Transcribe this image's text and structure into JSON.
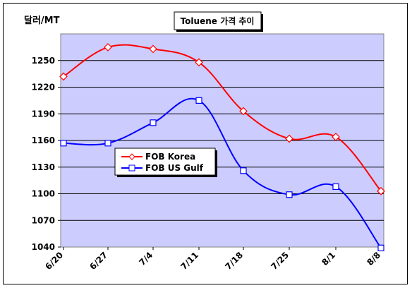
{
  "chart_data": {
    "type": "line",
    "title": "Toluene 가격 추이",
    "ylabel": "달러/MT",
    "xlabel": "",
    "categories": [
      "6/20",
      "6/27",
      "7/4",
      "7/11",
      "7/18",
      "7/25",
      "8/1",
      "8/8"
    ],
    "ylim": [
      1040,
      1280
    ],
    "yticks": [
      1040,
      1070,
      1100,
      1130,
      1160,
      1190,
      1220,
      1250
    ],
    "grid": "horizontal",
    "legend_position": "center-left",
    "plot_background": "#ccccff",
    "series": [
      {
        "name": "FOB Korea",
        "color": "#ff0000",
        "marker": "diamond",
        "values": [
          1232,
          1265,
          1263,
          1248,
          1193,
          1162,
          1164,
          1103
        ]
      },
      {
        "name": "FOB US Gulf",
        "color": "#0000ff",
        "marker": "square",
        "values": [
          1157,
          1157,
          1180,
          1205,
          1126,
          1099,
          1108,
          1039
        ]
      }
    ]
  }
}
